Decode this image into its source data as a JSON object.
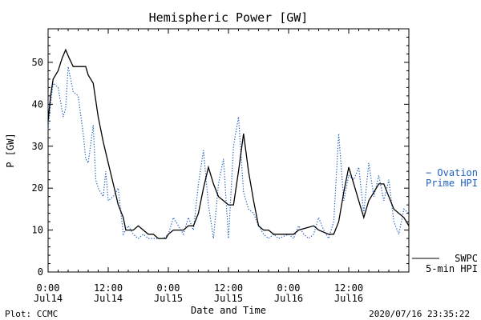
{
  "chart_data": {
    "type": "line",
    "title": "Hemispheric Power [GW]",
    "xlabel": "Date and Time",
    "ylabel": "P [GW]",
    "ylim": [
      0,
      58
    ],
    "xlim": [
      0,
      72
    ],
    "x_units": "hours since 2020-07-14 00:00",
    "yticks": [
      0,
      10,
      20,
      30,
      40,
      50
    ],
    "x_ticks": [
      {
        "x": 0,
        "time": "0:00",
        "day": "Jul14"
      },
      {
        "x": 12,
        "time": "12:00",
        "day": "Jul14"
      },
      {
        "x": 24,
        "time": "0:00",
        "day": "Jul15"
      },
      {
        "x": 36,
        "time": "12:00",
        "day": "Jul15"
      },
      {
        "x": 48,
        "time": "0:00",
        "day": "Jul16"
      },
      {
        "x": 60,
        "time": "12:00",
        "day": "Jul16"
      }
    ],
    "series": [
      {
        "name": "SWPC 5-min HPI",
        "legend_lines": [
          "SWPC",
          "5-min HPI"
        ],
        "color": "#000000",
        "style": "solid",
        "points": [
          [
            0,
            36
          ],
          [
            0.5,
            42
          ],
          [
            1,
            46
          ],
          [
            2,
            48
          ],
          [
            2.8,
            51
          ],
          [
            3.5,
            53
          ],
          [
            4.2,
            51
          ],
          [
            5,
            49
          ],
          [
            7.5,
            49
          ],
          [
            8,
            47
          ],
          [
            9,
            45
          ],
          [
            10,
            37
          ],
          [
            11,
            31
          ],
          [
            12,
            26
          ],
          [
            13,
            21
          ],
          [
            14,
            16
          ],
          [
            15,
            13
          ],
          [
            15.5,
            10
          ],
          [
            17,
            10
          ],
          [
            18,
            11
          ],
          [
            19,
            10
          ],
          [
            20,
            9
          ],
          [
            21,
            9
          ],
          [
            22,
            8
          ],
          [
            23.5,
            8
          ],
          [
            24,
            9
          ],
          [
            25,
            10
          ],
          [
            27,
            10
          ],
          [
            28,
            11
          ],
          [
            29,
            11
          ],
          [
            30,
            14
          ],
          [
            31,
            20
          ],
          [
            32,
            25
          ],
          [
            33,
            21
          ],
          [
            34,
            18
          ],
          [
            35,
            17
          ],
          [
            36,
            16
          ],
          [
            37,
            16
          ],
          [
            38,
            24
          ],
          [
            39,
            33
          ],
          [
            40,
            24
          ],
          [
            41,
            17
          ],
          [
            42,
            11
          ],
          [
            43,
            10
          ],
          [
            44,
            10
          ],
          [
            45,
            9
          ],
          [
            47,
            9
          ],
          [
            49,
            9
          ],
          [
            50,
            10
          ],
          [
            53,
            11
          ],
          [
            54,
            10
          ],
          [
            56,
            9
          ],
          [
            57,
            9
          ],
          [
            58,
            12
          ],
          [
            59,
            19
          ],
          [
            60,
            25
          ],
          [
            61,
            21
          ],
          [
            62,
            17
          ],
          [
            63,
            13
          ],
          [
            64,
            17
          ],
          [
            65,
            19
          ],
          [
            66,
            21
          ],
          [
            67,
            21
          ],
          [
            68,
            18
          ],
          [
            69,
            15
          ],
          [
            70,
            14
          ],
          [
            71,
            13
          ],
          [
            72,
            11
          ]
        ]
      },
      {
        "name": "Ovation Prime HPI",
        "legend_lines": [
          "− Ovation",
          "Prime HPI"
        ],
        "color": "#2060c0",
        "style": "dotted",
        "points": [
          [
            0,
            34
          ],
          [
            0.5,
            40
          ],
          [
            1,
            45
          ],
          [
            2,
            44
          ],
          [
            3,
            37
          ],
          [
            3.5,
            39
          ],
          [
            4,
            49
          ],
          [
            5,
            43
          ],
          [
            6,
            42
          ],
          [
            7,
            33
          ],
          [
            7.5,
            27
          ],
          [
            8,
            26
          ],
          [
            9,
            35
          ],
          [
            9.5,
            22
          ],
          [
            10,
            20
          ],
          [
            11,
            18
          ],
          [
            11.5,
            24
          ],
          [
            12,
            17
          ],
          [
            13,
            18
          ],
          [
            14,
            20
          ],
          [
            15,
            9
          ],
          [
            16,
            11
          ],
          [
            17,
            9
          ],
          [
            18,
            8
          ],
          [
            19,
            9
          ],
          [
            20,
            8
          ],
          [
            22,
            8
          ],
          [
            23,
            8
          ],
          [
            24,
            9
          ],
          [
            25,
            13
          ],
          [
            26,
            11
          ],
          [
            27,
            9
          ],
          [
            28,
            13
          ],
          [
            29,
            10
          ],
          [
            30,
            21
          ],
          [
            31,
            29
          ],
          [
            32,
            16
          ],
          [
            33,
            8
          ],
          [
            34,
            21
          ],
          [
            35,
            27
          ],
          [
            36,
            8
          ],
          [
            37,
            30
          ],
          [
            38,
            37
          ],
          [
            39,
            19
          ],
          [
            40,
            15
          ],
          [
            41,
            14
          ],
          [
            42,
            11
          ],
          [
            43,
            9
          ],
          [
            44,
            8
          ],
          [
            45,
            9
          ],
          [
            46,
            8
          ],
          [
            48,
            9
          ],
          [
            49,
            8
          ],
          [
            50,
            11
          ],
          [
            51,
            9
          ],
          [
            52,
            8
          ],
          [
            53,
            9
          ],
          [
            54,
            13
          ],
          [
            55,
            10
          ],
          [
            56,
            8
          ],
          [
            57,
            12
          ],
          [
            58,
            33
          ],
          [
            59,
            17
          ],
          [
            60,
            23
          ],
          [
            61,
            22
          ],
          [
            62,
            25
          ],
          [
            63,
            14
          ],
          [
            64,
            26
          ],
          [
            65,
            18
          ],
          [
            66,
            23
          ],
          [
            67,
            17
          ],
          [
            68,
            22
          ],
          [
            69,
            12
          ],
          [
            70,
            9
          ],
          [
            71,
            15
          ],
          [
            72,
            14
          ]
        ]
      }
    ]
  },
  "footer": {
    "left": "Plot: CCMC",
    "right": "2020/07/16 23:35:22"
  }
}
